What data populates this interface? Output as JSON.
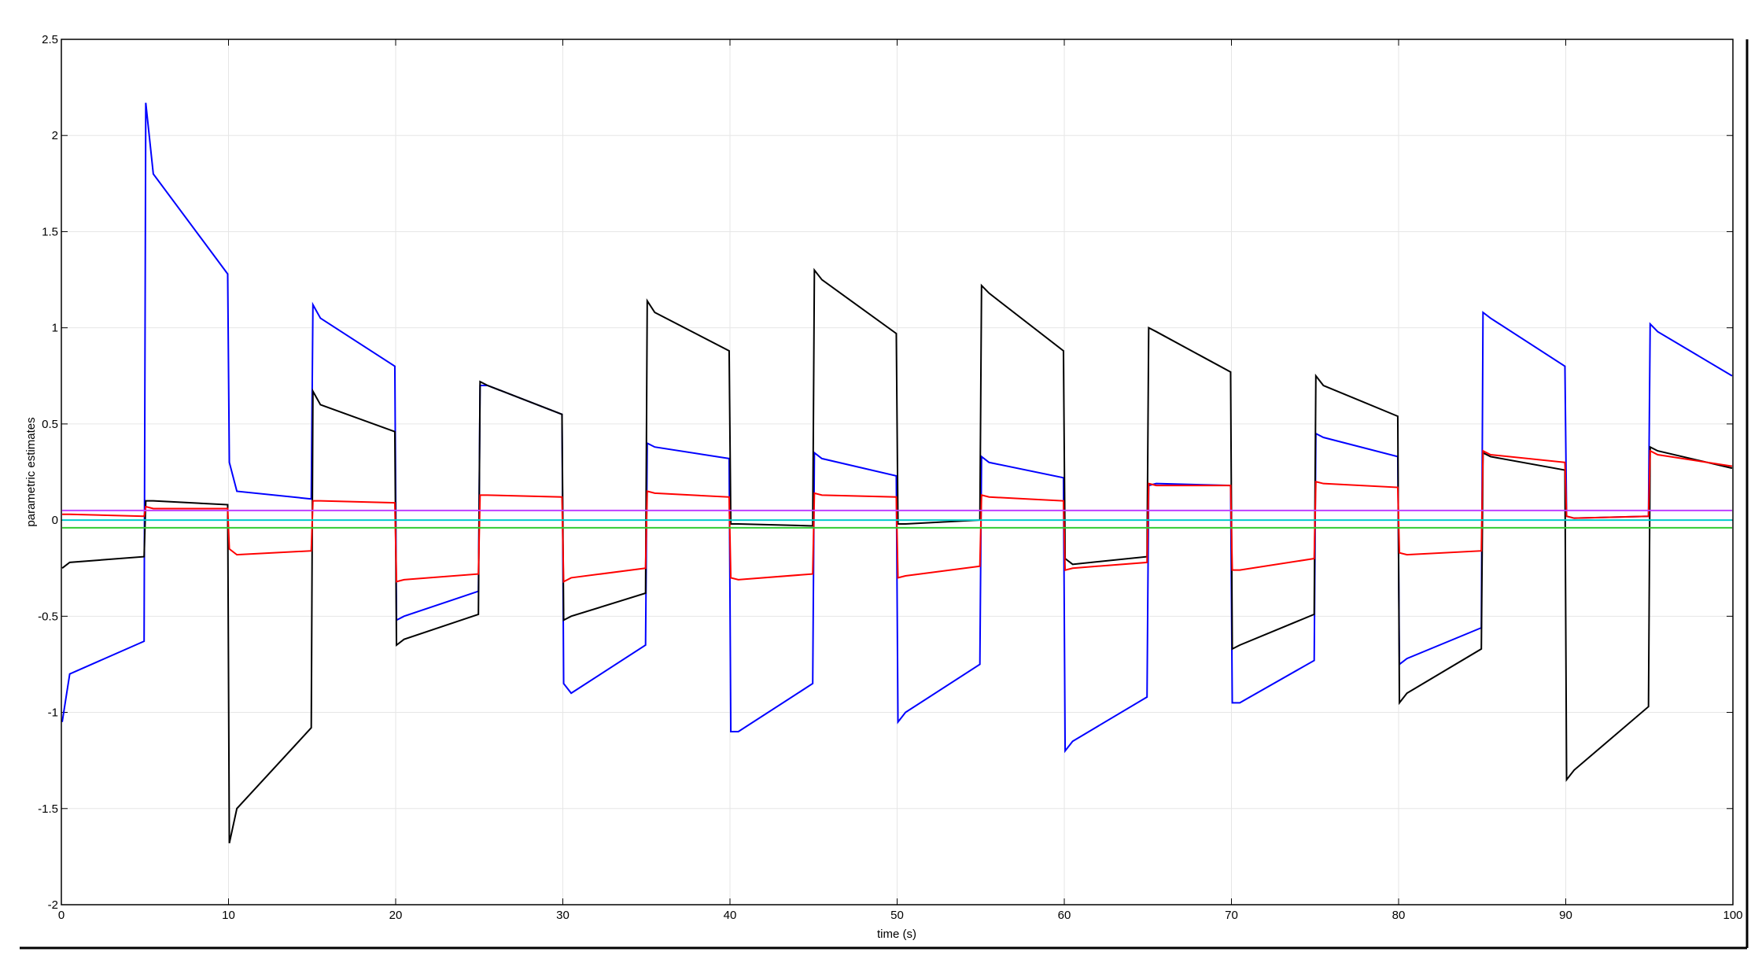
{
  "chart_data": {
    "type": "line",
    "xlabel": "time (s)",
    "ylabel": "parametric estimates",
    "x": [
      0.05,
      0.5,
      4.95,
      5.05,
      5.5,
      9.95,
      10.05,
      10.5,
      14.95,
      15.05,
      15.5,
      19.95,
      20.05,
      20.5,
      24.95,
      25.05,
      25.5,
      29.95,
      30.05,
      30.5,
      34.95,
      35.05,
      35.5,
      39.95,
      40.05,
      40.5,
      44.95,
      45.05,
      45.5,
      49.95,
      50.05,
      50.5,
      54.95,
      55.05,
      55.5,
      59.95,
      60.05,
      60.5,
      64.95,
      65.05,
      65.5,
      69.95,
      70.05,
      70.5,
      74.95,
      75.05,
      75.5,
      79.95,
      80.05,
      80.5,
      84.95,
      85.05,
      85.5,
      89.95,
      90.05,
      90.5,
      94.95,
      95.05,
      95.5,
      99.95
    ],
    "series": [
      {
        "color": "#0000ff",
        "values": [
          -1.05,
          -0.8,
          -0.63,
          2.17,
          1.8,
          1.28,
          0.3,
          0.15,
          0.11,
          1.12,
          1.05,
          0.8,
          -0.52,
          -0.5,
          -0.37,
          0.7,
          0.7,
          0.55,
          -0.85,
          -0.9,
          -0.65,
          0.4,
          0.38,
          0.32,
          -1.1,
          -1.1,
          -0.85,
          0.35,
          0.32,
          0.23,
          -1.05,
          -1.0,
          -0.75,
          0.33,
          0.3,
          0.22,
          -1.2,
          -1.15,
          -0.92,
          0.18,
          0.19,
          0.18,
          -0.95,
          -0.95,
          -0.73,
          0.45,
          0.43,
          0.33,
          -0.75,
          -0.72,
          -0.56,
          1.08,
          1.05,
          0.8,
          0.02,
          0.01,
          0.02,
          1.02,
          0.98,
          0.75
        ]
      },
      {
        "color": "#000000",
        "values": [
          -0.25,
          -0.22,
          -0.19,
          0.1,
          0.1,
          0.08,
          -1.68,
          -1.5,
          -1.08,
          0.67,
          0.6,
          0.46,
          -0.65,
          -0.62,
          -0.49,
          0.72,
          0.7,
          0.55,
          -0.52,
          -0.5,
          -0.38,
          1.14,
          1.08,
          0.88,
          -0.02,
          -0.02,
          -0.03,
          1.3,
          1.25,
          0.97,
          -0.02,
          -0.02,
          0.0,
          1.22,
          1.18,
          0.88,
          -0.2,
          -0.23,
          -0.19,
          1.0,
          0.98,
          0.77,
          -0.67,
          -0.65,
          -0.49,
          0.75,
          0.7,
          0.54,
          -0.95,
          -0.9,
          -0.67,
          0.35,
          0.33,
          0.26,
          -1.35,
          -1.3,
          -0.97,
          0.38,
          0.36,
          0.27
        ]
      },
      {
        "color": "#ff0000",
        "values": [
          0.03,
          0.03,
          0.02,
          0.07,
          0.06,
          0.06,
          -0.15,
          -0.18,
          -0.16,
          0.1,
          0.1,
          0.09,
          -0.32,
          -0.31,
          -0.28,
          0.13,
          0.13,
          0.12,
          -0.32,
          -0.3,
          -0.25,
          0.15,
          0.14,
          0.12,
          -0.3,
          -0.31,
          -0.28,
          0.14,
          0.13,
          0.12,
          -0.3,
          -0.29,
          -0.24,
          0.13,
          0.12,
          0.1,
          -0.26,
          -0.25,
          -0.22,
          0.19,
          0.18,
          0.18,
          -0.26,
          -0.26,
          -0.2,
          0.2,
          0.19,
          0.17,
          -0.17,
          -0.18,
          -0.16,
          0.36,
          0.34,
          0.3,
          0.02,
          0.01,
          0.02,
          0.36,
          0.34,
          0.28
        ]
      },
      {
        "color": "#bf40ff",
        "values": [
          0.05,
          0.05,
          0.05,
          0.05,
          0.05,
          0.05,
          0.05,
          0.05,
          0.05,
          0.05,
          0.05,
          0.05,
          0.05,
          0.05,
          0.05,
          0.05,
          0.05,
          0.05,
          0.05,
          0.05,
          0.05,
          0.05,
          0.05,
          0.05,
          0.05,
          0.05,
          0.05,
          0.05,
          0.05,
          0.05,
          0.05,
          0.05,
          0.05,
          0.05,
          0.05,
          0.05,
          0.05,
          0.05,
          0.05,
          0.05,
          0.05,
          0.05,
          0.05,
          0.05,
          0.05,
          0.05,
          0.05,
          0.05,
          0.05,
          0.05,
          0.05,
          0.05,
          0.05,
          0.05,
          0.05,
          0.05,
          0.05,
          0.05,
          0.05,
          0.05
        ]
      },
      {
        "color": "#00cccc",
        "values": [
          0,
          0,
          0,
          0,
          0,
          0,
          0,
          0,
          0,
          0,
          0,
          0,
          0,
          0,
          0,
          0,
          0,
          0,
          0,
          0,
          0,
          0,
          0,
          0,
          0,
          0,
          0,
          0,
          0,
          0,
          0,
          0,
          0,
          0,
          0,
          0,
          0,
          0,
          0,
          0,
          0,
          0,
          0,
          0,
          0,
          0,
          0,
          0,
          0,
          0,
          0,
          0,
          0,
          0,
          0,
          0,
          0,
          0,
          0,
          0
        ]
      },
      {
        "color": "#33cc33",
        "values": [
          -0.04,
          -0.04,
          -0.04,
          -0.04,
          -0.04,
          -0.04,
          -0.04,
          -0.04,
          -0.04,
          -0.04,
          -0.04,
          -0.04,
          -0.04,
          -0.04,
          -0.04,
          -0.04,
          -0.04,
          -0.04,
          -0.04,
          -0.04,
          -0.04,
          -0.04,
          -0.04,
          -0.04,
          -0.04,
          -0.04,
          -0.04,
          -0.04,
          -0.04,
          -0.04,
          -0.04,
          -0.04,
          -0.04,
          -0.04,
          -0.04,
          -0.04,
          -0.04,
          -0.04,
          -0.04,
          -0.04,
          -0.04,
          -0.04,
          -0.04,
          -0.04,
          -0.04,
          -0.04,
          -0.04,
          -0.04,
          -0.04,
          -0.04,
          -0.04,
          -0.04,
          -0.04,
          -0.04,
          -0.04,
          -0.04,
          -0.04,
          -0.04,
          -0.04,
          -0.04
        ]
      }
    ],
    "xlim": [
      0,
      100
    ],
    "xticks": [
      0,
      10,
      20,
      30,
      40,
      50,
      60,
      70,
      80,
      90,
      100
    ],
    "ylim": [
      -2,
      2.5
    ],
    "yticks": [
      -2,
      -1.5,
      -1,
      -0.5,
      0,
      0.5,
      1,
      1.5,
      2,
      2.5
    ],
    "grid": true
  }
}
